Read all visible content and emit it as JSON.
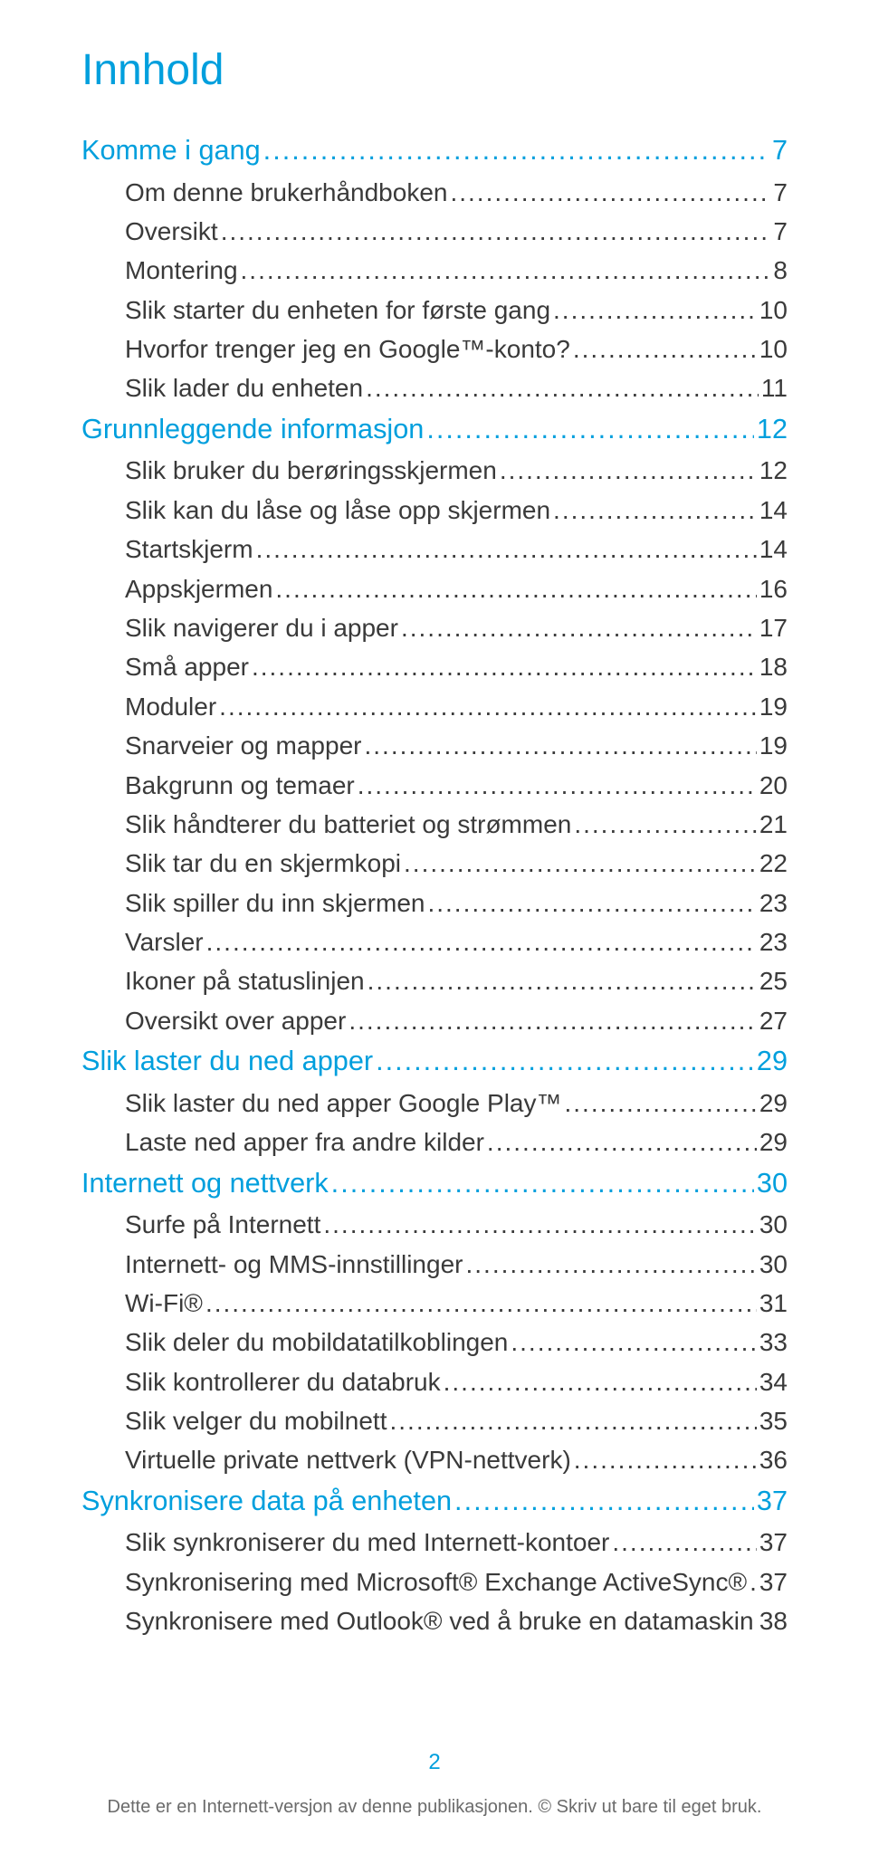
{
  "colors": {
    "accent": "#009fdd",
    "body": "#3a3a3a",
    "muted": "#6b6b6b",
    "background": "#ffffff"
  },
  "fonts": {
    "title_size_pt": 36,
    "section_size_pt": 23,
    "item_size_pt": 21,
    "pagenum_size_pt": 18,
    "footer_size_pt": 15
  },
  "title": "Innhold",
  "sections": [
    {
      "label": "Komme i gang",
      "page": "7",
      "items": [
        {
          "label": "Om denne brukerhåndboken",
          "page": "7"
        },
        {
          "label": "Oversikt",
          "page": "7"
        },
        {
          "label": "Montering",
          "page": "8"
        },
        {
          "label": "Slik starter du enheten for første gang",
          "page": "10"
        },
        {
          "label": "Hvorfor trenger jeg en Google™-konto?",
          "page": "10"
        },
        {
          "label": "Slik lader du enheten",
          "page": "11"
        }
      ]
    },
    {
      "label": "Grunnleggende informasjon",
      "page": "12",
      "items": [
        {
          "label": "Slik bruker du berøringsskjermen",
          "page": "12"
        },
        {
          "label": "Slik kan du låse og låse opp skjermen",
          "page": "14"
        },
        {
          "label": "Startskjerm",
          "page": "14"
        },
        {
          "label": "Appskjermen",
          "page": "16"
        },
        {
          "label": "Slik navigerer du i apper",
          "page": "17"
        },
        {
          "label": "Små apper",
          "page": "18"
        },
        {
          "label": "Moduler",
          "page": "19"
        },
        {
          "label": "Snarveier og mapper",
          "page": "19"
        },
        {
          "label": "Bakgrunn og temaer",
          "page": "20"
        },
        {
          "label": "Slik håndterer du batteriet og strømmen",
          "page": "21"
        },
        {
          "label": "Slik tar du en skjermkopi",
          "page": "22"
        },
        {
          "label": "Slik spiller du inn skjermen",
          "page": "23"
        },
        {
          "label": "Varsler",
          "page": "23"
        },
        {
          "label": "Ikoner på statuslinjen",
          "page": "25"
        },
        {
          "label": "Oversikt over apper",
          "page": "27"
        }
      ]
    },
    {
      "label": "Slik laster du ned apper",
      "page": "29",
      "items": [
        {
          "label": "Slik laster du ned apper Google Play™",
          "page": "29"
        },
        {
          "label": "Laste ned apper fra andre kilder",
          "page": "29"
        }
      ]
    },
    {
      "label": "Internett og nettverk",
      "page": "30",
      "items": [
        {
          "label": "Surfe på Internett",
          "page": "30"
        },
        {
          "label": "Internett- og MMS-innstillinger",
          "page": "30"
        },
        {
          "label": "Wi-Fi®",
          "page": "31"
        },
        {
          "label": "Slik deler du mobildatatilkoblingen",
          "page": "33"
        },
        {
          "label": "Slik kontrollerer du databruk",
          "page": "34"
        },
        {
          "label": "Slik velger du mobilnett",
          "page": "35"
        },
        {
          "label": "Virtuelle private nettverk (VPN-nettverk)",
          "page": "36"
        }
      ]
    },
    {
      "label": "Synkronisere data på enheten",
      "page": "37",
      "items": [
        {
          "label": "Slik synkroniserer du med Internett-kontoer",
          "page": "37"
        },
        {
          "label": "Synkronisering med Microsoft® Exchange ActiveSync®",
          "page": "37"
        },
        {
          "label": "Synkronisere med Outlook® ved å bruke en datamaskin",
          "page": "38"
        }
      ]
    }
  ],
  "pageNumber": "2",
  "footer": "Dette er en Internett-versjon av denne publikasjonen. © Skriv ut bare til eget bruk."
}
